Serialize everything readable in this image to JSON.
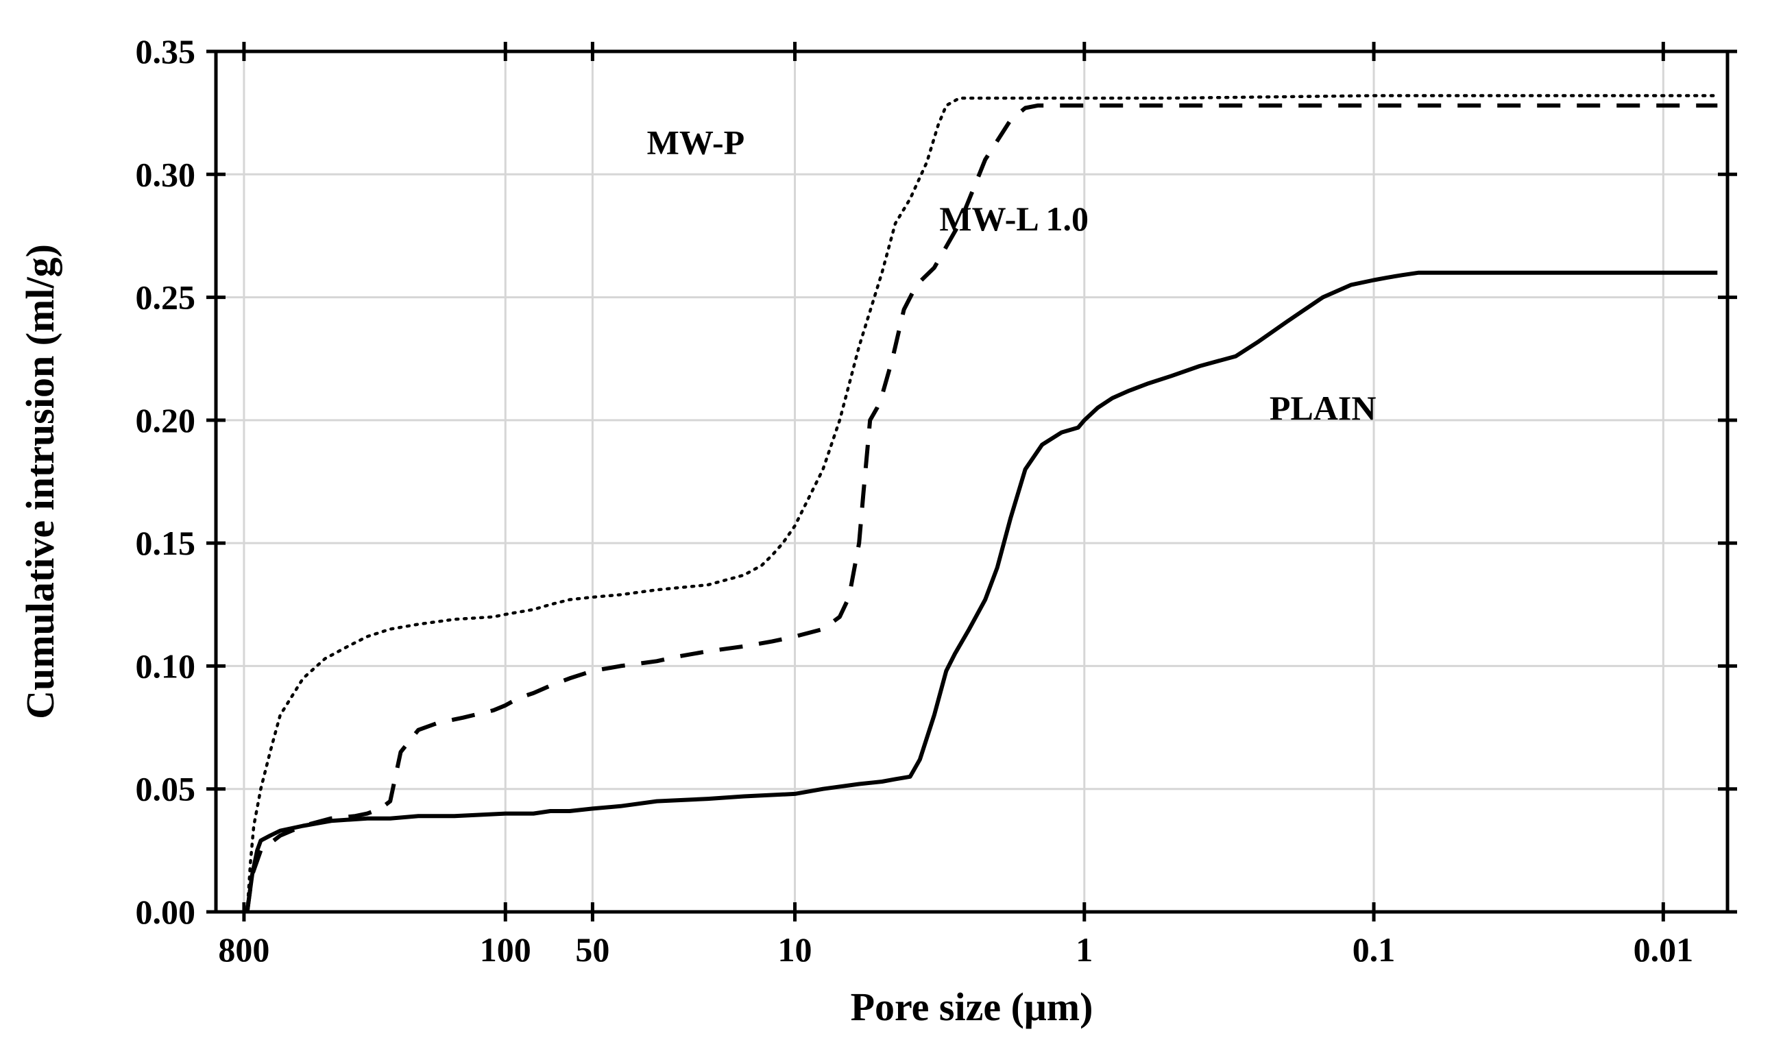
{
  "chart_data": {
    "type": "line",
    "xlabel": "Pore size (μm)",
    "ylabel": "Cumulative intrusion (ml/g)",
    "x_scale": "log",
    "x_reversed": true,
    "xlim": [
      1000,
      0.006
    ],
    "ylim": [
      0,
      0.35
    ],
    "grid": true,
    "x_ticks": [
      {
        "value": 800,
        "label": "800"
      },
      {
        "value": 100,
        "label": "100"
      },
      {
        "value": 50,
        "label": "50"
      },
      {
        "value": 10,
        "label": "10"
      },
      {
        "value": 1,
        "label": "1"
      },
      {
        "value": 0.1,
        "label": "0.1"
      },
      {
        "value": 0.01,
        "label": "0.01"
      }
    ],
    "x_grid": [
      800,
      100,
      50,
      10,
      1,
      0.1,
      0.01
    ],
    "y_ticks": [
      {
        "value": 0.0,
        "label": "0.00"
      },
      {
        "value": 0.05,
        "label": "0.05"
      },
      {
        "value": 0.1,
        "label": "0.10"
      },
      {
        "value": 0.15,
        "label": "0.15"
      },
      {
        "value": 0.2,
        "label": "0.20"
      },
      {
        "value": 0.25,
        "label": "0.25"
      },
      {
        "value": 0.3,
        "label": "0.30"
      },
      {
        "value": 0.35,
        "label": "0.35"
      }
    ],
    "series": [
      {
        "name": "MW-P",
        "style": "dotted",
        "label_at": [
          22,
          0.313
        ],
        "x": [
          780,
          760,
          740,
          700,
          650,
          600,
          500,
          420,
          350,
          300,
          250,
          200,
          150,
          110,
          100,
          80,
          70,
          60,
          50,
          40,
          30,
          20,
          15,
          13,
          12,
          11,
          10,
          8,
          7,
          6,
          5,
          4.5,
          4,
          3.5,
          3.2,
          3,
          2.7,
          2.2,
          1.5,
          1,
          0.5,
          0.1,
          0.05,
          0.0065
        ],
        "values": [
          0.0,
          0.02,
          0.035,
          0.05,
          0.065,
          0.08,
          0.095,
          0.103,
          0.108,
          0.112,
          0.115,
          0.117,
          0.119,
          0.12,
          0.121,
          0.123,
          0.125,
          0.127,
          0.128,
          0.129,
          0.131,
          0.133,
          0.137,
          0.141,
          0.145,
          0.15,
          0.157,
          0.18,
          0.2,
          0.23,
          0.26,
          0.28,
          0.29,
          0.305,
          0.32,
          0.328,
          0.331,
          0.331,
          0.331,
          0.331,
          0.331,
          0.332,
          0.332,
          0.332
        ]
      },
      {
        "name": "MW-L 1.0",
        "style": "dashed",
        "label_at": [
          1.75,
          0.282
        ],
        "x": [
          780,
          750,
          700,
          600,
          500,
          400,
          330,
          300,
          270,
          250,
          230,
          200,
          170,
          140,
          110,
          100,
          90,
          80,
          70,
          60,
          50,
          40,
          30,
          25,
          20,
          15,
          12,
          10,
          8,
          7,
          6.5,
          6,
          5.8,
          5.5,
          5.2,
          5,
          4.6,
          4.2,
          3.8,
          3.3,
          2.7,
          2.2,
          1.8,
          1.6,
          1.45,
          1.3,
          1.15,
          1,
          0.5,
          0.1,
          0.0065
        ],
        "values": [
          0.0,
          0.015,
          0.025,
          0.031,
          0.035,
          0.038,
          0.039,
          0.04,
          0.042,
          0.045,
          0.065,
          0.074,
          0.077,
          0.079,
          0.082,
          0.084,
          0.087,
          0.089,
          0.092,
          0.095,
          0.098,
          0.1,
          0.102,
          0.104,
          0.106,
          0.108,
          0.11,
          0.112,
          0.115,
          0.12,
          0.128,
          0.15,
          0.17,
          0.2,
          0.205,
          0.21,
          0.225,
          0.245,
          0.255,
          0.262,
          0.28,
          0.306,
          0.322,
          0.327,
          0.328,
          0.328,
          0.328,
          0.328,
          0.328,
          0.328,
          0.328
        ]
      },
      {
        "name": "PLAIN",
        "style": "solid",
        "label_at": [
          0.15,
          0.205
        ],
        "x": [
          780,
          770,
          750,
          720,
          700,
          650,
          600,
          500,
          400,
          300,
          250,
          200,
          150,
          100,
          80,
          70,
          60,
          50,
          40,
          30,
          20,
          15,
          10,
          8,
          6,
          5,
          4.5,
          4,
          3.7,
          3.3,
          3,
          2.8,
          2.5,
          2.2,
          2,
          1.8,
          1.6,
          1.4,
          1.2,
          1.05,
          1,
          0.9,
          0.8,
          0.7,
          0.6,
          0.5,
          0.4,
          0.3,
          0.25,
          0.2,
          0.15,
          0.12,
          0.1,
          0.09,
          0.08,
          0.07,
          0.05,
          0.01,
          0.0065
        ],
        "values": [
          0.0,
          0.005,
          0.015,
          0.025,
          0.029,
          0.031,
          0.033,
          0.035,
          0.037,
          0.038,
          0.038,
          0.039,
          0.039,
          0.04,
          0.04,
          0.041,
          0.041,
          0.042,
          0.043,
          0.045,
          0.046,
          0.047,
          0.048,
          0.05,
          0.052,
          0.053,
          0.054,
          0.055,
          0.062,
          0.08,
          0.098,
          0.105,
          0.115,
          0.127,
          0.14,
          0.16,
          0.18,
          0.19,
          0.195,
          0.197,
          0.2,
          0.205,
          0.209,
          0.212,
          0.215,
          0.218,
          0.222,
          0.226,
          0.232,
          0.24,
          0.25,
          0.255,
          0.257,
          0.258,
          0.259,
          0.26,
          0.26,
          0.26,
          0.26
        ]
      }
    ]
  }
}
